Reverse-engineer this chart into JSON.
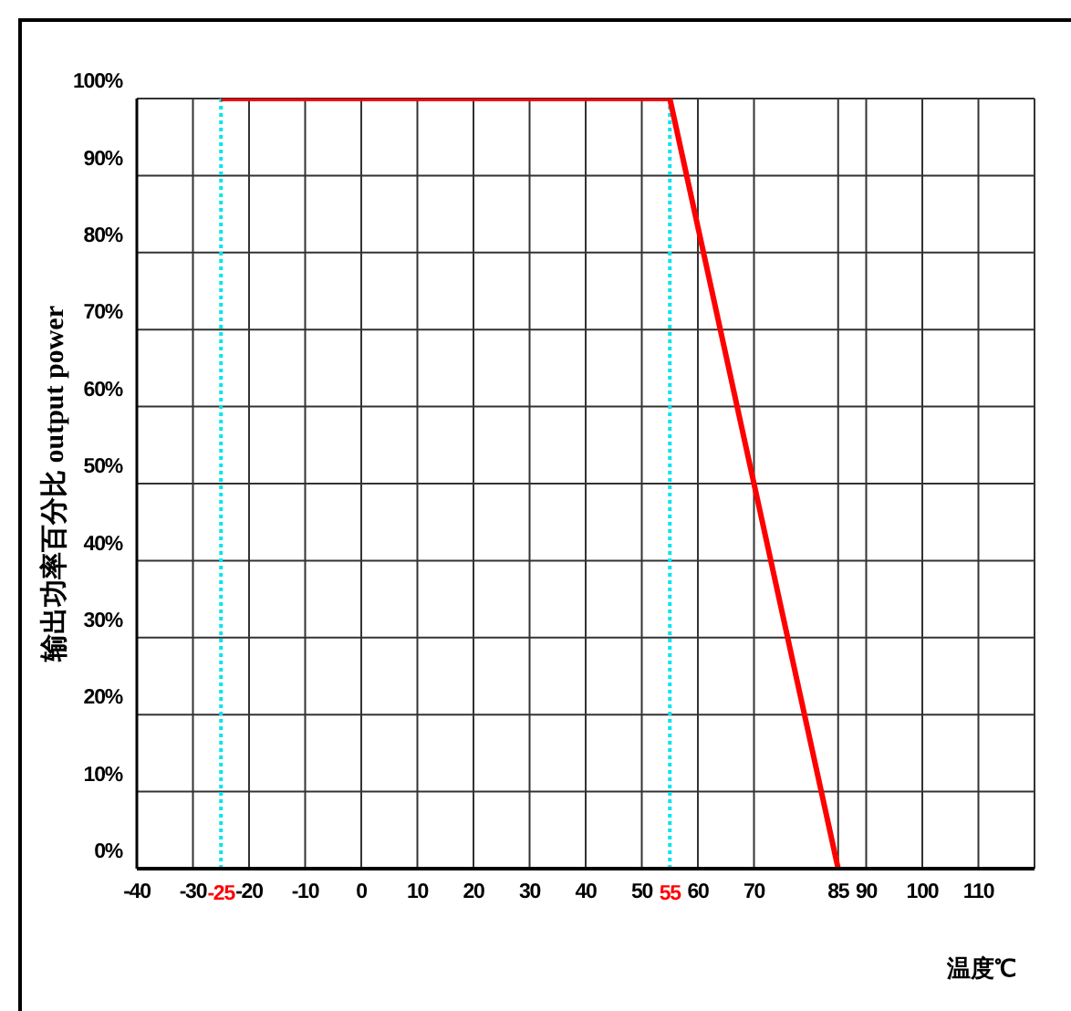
{
  "chart_data": {
    "type": "line",
    "xlabel": "温度℃",
    "ylabel": "输出功率百分比 output power",
    "x": [
      -25,
      55,
      85
    ],
    "series": [
      {
        "color": "#ff0000",
        "values": [
          100,
          100,
          0
        ]
      }
    ],
    "xlim": [
      -40,
      120
    ],
    "xticks": [
      -40,
      -30,
      -20,
      -10,
      0,
      10,
      20,
      30,
      40,
      50,
      60,
      70,
      85,
      90,
      100,
      110,
      {
        "value": 120,
        "label": null
      }
    ],
    "ylim": [
      0,
      100
    ],
    "yticks": [
      {
        "value": 0,
        "label": "0%"
      },
      {
        "value": 10,
        "label": "10%"
      },
      {
        "value": 20,
        "label": "20%"
      },
      {
        "value": 30,
        "label": "30%"
      },
      {
        "value": 40,
        "label": "40%"
      },
      {
        "value": 50,
        "label": "50%"
      },
      {
        "value": 60,
        "label": "60%"
      },
      {
        "value": 70,
        "label": "70%"
      },
      {
        "value": 80,
        "label": "80%"
      },
      {
        "value": 90,
        "label": "90%"
      },
      {
        "value": 100,
        "label": "100%"
      }
    ],
    "ref_lines": [
      {
        "axis": "x",
        "value": -25,
        "label": "-25",
        "color": "#00e5ee",
        "line_style": "dotted"
      },
      {
        "axis": "x",
        "value": 55,
        "label": "55",
        "color": "#00e5ee",
        "line_style": "dotted"
      }
    ],
    "grid": true,
    "legend": false,
    "marker": "none",
    "line_style": "solid"
  }
}
